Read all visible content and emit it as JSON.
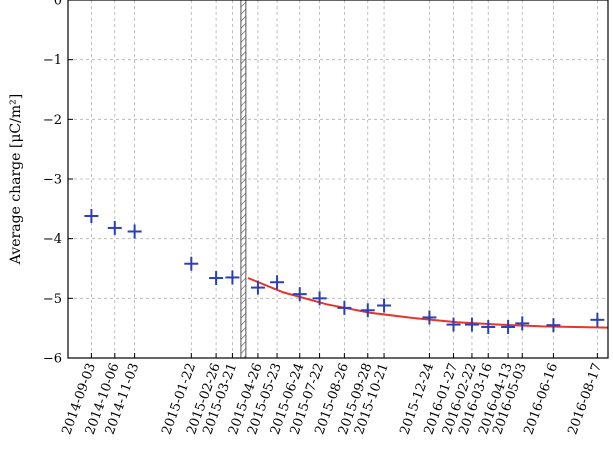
{
  "chart_data": {
    "type": "scatter",
    "xlabel": "",
    "ylabel": "Average charge [μC/m²]",
    "ylim": [
      -6,
      0
    ],
    "yticks": [
      "0",
      "−1",
      "−2",
      "−3",
      "−4",
      "−5",
      "−6"
    ],
    "xlim": [
      "2014-08-01",
      "2016-09-01"
    ],
    "grid": true,
    "grid_style": "dashed",
    "marker_color": "#2b3fb8",
    "fit_color": "#e8352b",
    "boundary_hatch_color": "#555555",
    "x_dates": [
      "2014-09-03",
      "2014-10-06",
      "2014-11-03",
      "2015-01-22",
      "2015-02-26",
      "2015-03-21",
      "2015-04-26",
      "2015-05-23",
      "2015-06-24",
      "2015-07-22",
      "2015-08-26",
      "2015-09-28",
      "2015-10-21",
      "2015-12-24",
      "2016-01-27",
      "2016-02-22",
      "2016-03-16",
      "2016-04-13",
      "2016-05-03",
      "2016-06-16",
      "2016-08-17"
    ],
    "series": [
      {
        "marker": "plus",
        "x": [
          "2014-09-03",
          "2014-10-06",
          "2014-11-03",
          "2015-01-22",
          "2015-02-26",
          "2015-03-21",
          "2015-04-26",
          "2015-05-23",
          "2015-06-24",
          "2015-07-22",
          "2015-08-26",
          "2015-09-28",
          "2015-10-21",
          "2015-12-24",
          "2016-01-27",
          "2016-02-22",
          "2016-03-16",
          "2016-04-13",
          "2016-05-03",
          "2016-06-16",
          "2016-08-17"
        ],
        "y": [
          -3.62,
          -3.82,
          -3.88,
          -4.42,
          -4.66,
          -4.65,
          -4.82,
          -4.73,
          -4.93,
          -5.0,
          -5.16,
          -5.2,
          -5.12,
          -5.32,
          -5.44,
          -5.44,
          -5.48,
          -5.48,
          -5.42,
          -5.45,
          -5.36
        ]
      },
      {
        "type": "line",
        "x": [
          "2015-04-12",
          "2015-06-01",
          "2015-08-01",
          "2015-10-01",
          "2015-12-01",
          "2016-02-01",
          "2016-04-01",
          "2016-06-01",
          "2016-09-01"
        ],
        "y": [
          -4.66,
          -4.9,
          -5.1,
          -5.24,
          -5.33,
          -5.4,
          -5.44,
          -5.47,
          -5.49
        ]
      }
    ],
    "boundary_band": [
      "2015-04-02",
      "2015-04-09"
    ]
  }
}
